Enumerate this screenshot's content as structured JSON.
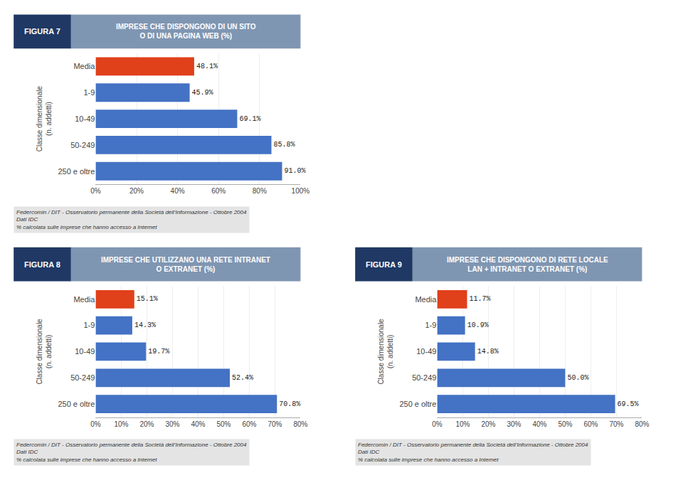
{
  "chart_data": [
    {
      "type": "bar",
      "orientation": "horizontal",
      "title": "FIGURA 7",
      "subtitle": "IMPRESE CHE DISPONGONO DI UN SITO\nO DI UNA PAGINA WEB (%)",
      "categories": [
        "250 e oltre",
        "50-249",
        "10-49",
        "1-9",
        "Media"
      ],
      "values": [
        91.0,
        85.8,
        69.1,
        45.9,
        48.1
      ],
      "value_labels": [
        "91.0%",
        "85.8%",
        "69.1%",
        "45.9%",
        "48.1%"
      ],
      "data_labels": true,
      "colors": [
        "#4472c4",
        "#4472c4",
        "#4472c4",
        "#4472c4",
        "#e0401a"
      ],
      "ylabel": "Classe dimensionale\n(n. addetti)",
      "xlim": [
        0,
        100
      ],
      "xticks": [
        {
          "value": 0,
          "label": "0%"
        },
        {
          "value": 20,
          "label": "20%"
        },
        {
          "value": 40,
          "label": "40%"
        },
        {
          "value": 60,
          "label": "60%"
        },
        {
          "value": 80,
          "label": "80%"
        },
        {
          "value": 100,
          "label": "100%"
        }
      ],
      "grid": true,
      "annotations": [
        "Federcomin / DIT - Osservatorio permanente della Società dell'Informazione - Ottobre 2004\nDati IDC\n% calcolata sulle imprese che hanno accesso a Internet"
      ]
    },
    {
      "type": "bar",
      "orientation": "horizontal",
      "title": "FIGURA 8",
      "subtitle": "IMPRESE CHE UTILIZZANO UNA RETE INTRANET\nO EXTRANET (%)",
      "categories": [
        "250 e oltre",
        "50-249",
        "10-49",
        "1-9",
        "Media"
      ],
      "values": [
        70.8,
        52.4,
        19.7,
        14.3,
        15.1
      ],
      "value_labels": [
        "70.8%",
        "52.4%",
        "19.7%",
        "14.3%",
        "15.1%"
      ],
      "data_labels": true,
      "colors": [
        "#4472c4",
        "#4472c4",
        "#4472c4",
        "#4472c4",
        "#e0401a"
      ],
      "ylabel": "Classe dimensionale\n(n. addetti)",
      "xlim": [
        0,
        80
      ],
      "xticks": [
        {
          "value": 0,
          "label": "0%"
        },
        {
          "value": 10,
          "label": "10%"
        },
        {
          "value": 20,
          "label": "20%"
        },
        {
          "value": 30,
          "label": "30%"
        },
        {
          "value": 40,
          "label": "40%"
        },
        {
          "value": 50,
          "label": "50%"
        },
        {
          "value": 60,
          "label": "60%"
        },
        {
          "value": 70,
          "label": "70%"
        },
        {
          "value": 80,
          "label": "80%"
        }
      ],
      "grid": true,
      "annotations": [
        "Federcomin / DIT - Osservatorio permanente della Società dell'Informazione - Ottobre 2004\nDati IDC\n% calcolata sulle imprese che hanno accesso a Internet"
      ]
    },
    {
      "type": "bar",
      "orientation": "horizontal",
      "title": "FIGURA 9",
      "subtitle": "IMPRESE CHE DISPONGONO DI RETE LOCALE\nLAN + INTRANET O EXTRANET (%)",
      "categories": [
        "250 e oltre",
        "50-249",
        "10-49",
        "1-9",
        "Media"
      ],
      "values": [
        69.5,
        50.0,
        14.8,
        10.9,
        11.7
      ],
      "value_labels": [
        "69.5%",
        "50.0%",
        "14.8%",
        "10.9%",
        "11.7%"
      ],
      "data_labels": true,
      "colors": [
        "#4472c4",
        "#4472c4",
        "#4472c4",
        "#4472c4",
        "#e0401a"
      ],
      "ylabel": "Classe dimensionale\n(n. addetti)",
      "xlim": [
        0,
        80
      ],
      "xticks": [
        {
          "value": 0,
          "label": "0%"
        },
        {
          "value": 10,
          "label": "10%"
        },
        {
          "value": 20,
          "label": "20%"
        },
        {
          "value": 30,
          "label": "30%"
        },
        {
          "value": 40,
          "label": "40%"
        },
        {
          "value": 50,
          "label": "50%"
        },
        {
          "value": 60,
          "label": "60%"
        },
        {
          "value": 70,
          "label": "70%"
        },
        {
          "value": 80,
          "label": "80%"
        }
      ],
      "grid": true,
      "annotations": [
        "Federcomin / DIT - Osservatorio permanente della Società dell'Informazione - Ottobre 2004\nDati IDC\n% calcolata sulle imprese che hanno accesso a Internet"
      ]
    }
  ]
}
